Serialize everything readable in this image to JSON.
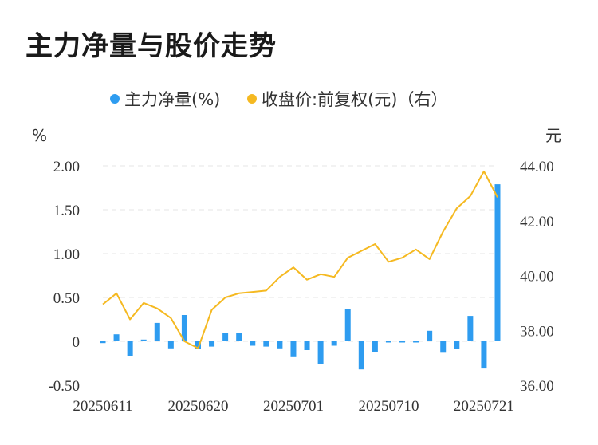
{
  "chart_data": {
    "type": "bar+line",
    "title": "主力净量与股价走势",
    "legend": [
      {
        "name": "主力净量(%)",
        "color": "#2e9cf0"
      },
      {
        "name": "收盘价:前复权(元)（右）",
        "color": "#f5b921"
      }
    ],
    "left_unit": "%",
    "right_unit": "元",
    "left_ylim": [
      -0.5,
      2.0
    ],
    "right_ylim": [
      36.0,
      44.0
    ],
    "left_ticks": [
      "2.00",
      "1.50",
      "1.00",
      "0.50",
      "0",
      "-0.50"
    ],
    "right_ticks": [
      "44.00",
      "42.00",
      "40.00",
      "38.00",
      "36.00"
    ],
    "x_tick_labels": [
      "20250611",
      "20250620",
      "20250701",
      "20250710",
      "20250721"
    ],
    "x_tick_indices": [
      0,
      7,
      14,
      21,
      28
    ],
    "grid": "horizontal-dashed",
    "series": [
      {
        "name": "主力净量(%)",
        "type": "bar",
        "values": [
          -0.02,
          0.08,
          -0.17,
          0.02,
          0.21,
          -0.08,
          0.3,
          -0.09,
          -0.06,
          0.1,
          0.1,
          -0.05,
          -0.06,
          -0.08,
          -0.18,
          -0.1,
          -0.26,
          -0.05,
          0.37,
          -0.32,
          -0.12,
          -0.01,
          -0.01,
          0.0,
          0.12,
          -0.13,
          -0.09,
          0.29,
          -0.31,
          1.79
        ]
      },
      {
        "name": "收盘价:前复权(元)（右）",
        "type": "line",
        "values": [
          38.95,
          39.35,
          38.4,
          39.0,
          38.8,
          38.45,
          37.6,
          37.35,
          38.75,
          39.2,
          39.35,
          39.4,
          39.45,
          39.95,
          40.3,
          39.85,
          40.05,
          39.95,
          40.65,
          40.9,
          41.15,
          40.5,
          40.65,
          40.95,
          40.6,
          41.6,
          42.45,
          42.9,
          43.8,
          42.85
        ]
      }
    ]
  }
}
